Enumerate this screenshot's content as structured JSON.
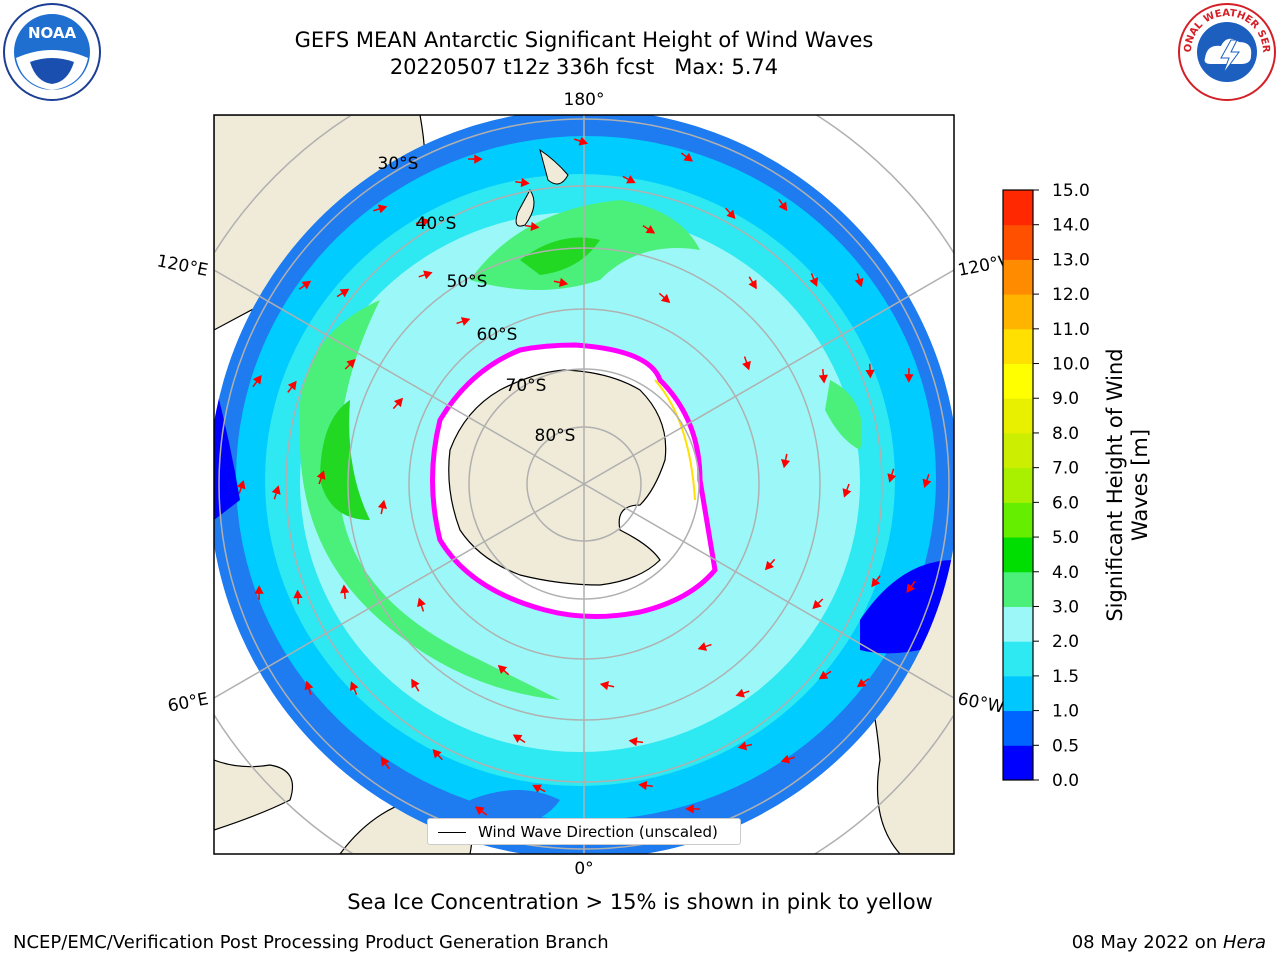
{
  "header": {
    "title_line1": "GEFS MEAN Antarctic Significant Height of Wind Waves",
    "title_line2": "20220507 t12z 336h fcst   Max: 5.74"
  },
  "logos": {
    "left": "noaa-logo",
    "right": "national-weather-service-logo",
    "right_text": "NATIONAL WEATHER SERVICE"
  },
  "map": {
    "projection": "south-polar-stereographic",
    "longitude_labels": {
      "top": "180°",
      "bottom": "0°",
      "left_upper": "120°E",
      "left_lower": "60°E",
      "right_upper": "120°W",
      "right_lower": "60°W"
    },
    "latitude_labels": [
      "30°S",
      "40°S",
      "50°S",
      "60°S",
      "70°S",
      "80°S"
    ],
    "colors": {
      "land": "#efebd8",
      "ice_edge": "#ff00ff",
      "arrow": "#ff0000",
      "grid": "#b0b0b0"
    }
  },
  "colorbar": {
    "title_line1": "Significant Height of Wind",
    "title_line2": "Waves [m]",
    "ticks": [
      "0.0",
      "0.5",
      "1.0",
      "1.5",
      "2.0",
      "3.0",
      "4.0",
      "5.0",
      "6.0",
      "7.0",
      "8.0",
      "9.0",
      "10.0",
      "11.0",
      "12.0",
      "13.0",
      "14.0",
      "15.0"
    ],
    "colors": [
      "#0000ff",
      "#0064ff",
      "#00c8ff",
      "#2ee8f2",
      "#9cf8f8",
      "#4bf07a",
      "#00dd00",
      "#66ee00",
      "#a8f000",
      "#ccee00",
      "#e8f000",
      "#ffff00",
      "#ffe000",
      "#ffb400",
      "#ff8c00",
      "#ff5000",
      "#ff2800"
    ]
  },
  "legend": {
    "label": "Wind Wave Direction (unscaled)"
  },
  "caption": "Sea Ice Concentration > 15% is shown in pink to yellow",
  "footer": {
    "left": "NCEP/EMC/Verification Post Processing Product Generation Branch",
    "right_prefix": "08 May 2022 on ",
    "right_host": "Hera"
  }
}
